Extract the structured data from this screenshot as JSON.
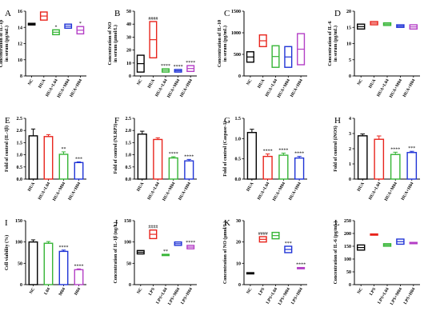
{
  "chart_data": [
    {
      "id": "A",
      "type": "box",
      "letter": "A",
      "ylabel": [
        "Concentration of IL-1β",
        "in serum (pg/mL)"
      ],
      "ylim": [
        8,
        16
      ],
      "yticks": [
        8,
        10,
        12,
        14,
        16
      ],
      "categories": [
        "NC",
        "HUA",
        "HUA+L04",
        "HUA+M04",
        "HUA+H04"
      ],
      "colors": [
        "#000000",
        "#e8241c",
        "#35b535",
        "#1f33d6",
        "#b43fc6"
      ],
      "values": [
        [
          14.3,
          14.5
        ],
        [
          14.9,
          15.9
        ],
        [
          13.1,
          13.7
        ],
        [
          13.9,
          14.4
        ],
        [
          13.2,
          14.1
        ]
      ],
      "sig": [
        "",
        "",
        "*",
        "",
        "*"
      ]
    },
    {
      "id": "B",
      "type": "box",
      "letter": "B",
      "ylabel": [
        "Concentration of NO",
        "in serum (μmol/L)"
      ],
      "ylim": [
        0,
        50
      ],
      "yticks": [
        0,
        10,
        20,
        30,
        40,
        50
      ],
      "categories": [
        "NC",
        "HUA",
        "HUA+L04",
        "HUA+M04",
        "HUA+H04"
      ],
      "colors": [
        "#000000",
        "#e8241c",
        "#35b535",
        "#1f33d6",
        "#b43fc6"
      ],
      "values": [
        [
          3,
          16
        ],
        [
          14,
          42
        ],
        [
          3,
          5.5
        ],
        [
          3,
          5
        ],
        [
          3.5,
          8
        ]
      ],
      "sig": [
        "",
        "####",
        "****",
        "****",
        "****"
      ]
    },
    {
      "id": "C",
      "type": "box",
      "letter": "C",
      "ylabel": [
        "Concentration of IL-10",
        "in serum (pg/mL)"
      ],
      "ylim": [
        0,
        1500
      ],
      "yticks": [
        0,
        500,
        1000,
        1500
      ],
      "categories": [
        "NC",
        "HUA",
        "HUA+L04",
        "HUA+M04",
        "HUA+H04"
      ],
      "colors": [
        "#000000",
        "#e8241c",
        "#35b535",
        "#1f33d6",
        "#b43fc6"
      ],
      "values": [
        [
          320,
          560
        ],
        [
          680,
          950
        ],
        [
          200,
          700
        ],
        [
          200,
          680
        ],
        [
          260,
          980
        ]
      ],
      "sig": [
        "",
        "",
        "",
        "",
        ""
      ]
    },
    {
      "id": "D",
      "type": "box",
      "letter": "D",
      "ylabel": [
        "Concentration of IL-6",
        "in serum (pg/mL)"
      ],
      "ylim": [
        0,
        20
      ],
      "yticks": [
        0,
        5,
        10,
        15,
        20
      ],
      "categories": [
        "NC",
        "HUA",
        "HUA+L04",
        "HUA+M04",
        "HUA+H04"
      ],
      "colors": [
        "#000000",
        "#e8241c",
        "#35b535",
        "#1f33d6",
        "#b43fc6"
      ],
      "values": [
        [
          14.5,
          16
        ],
        [
          15.8,
          16.8
        ],
        [
          15.6,
          16.4
        ],
        [
          15,
          15.8
        ],
        [
          14.5,
          15.8
        ]
      ],
      "sig": [
        "",
        "",
        "",
        "",
        ""
      ]
    },
    {
      "id": "E",
      "type": "bar",
      "letter": "E",
      "ylabel": [
        "Fold of control  (IL-1β)"
      ],
      "ylim": [
        0,
        2.5
      ],
      "yticks": [
        0.0,
        0.5,
        1.0,
        1.5,
        2.0,
        2.5
      ],
      "categories": [
        "HUA",
        "HUA+L04",
        "HUA+M04",
        "HUA+H04"
      ],
      "colors": [
        "#000000",
        "#e8241c",
        "#35b535",
        "#1f33d6"
      ],
      "values": [
        1.78,
        1.75,
        1.02,
        0.68
      ],
      "errors": [
        0.28,
        0.08,
        0.1,
        0.03
      ],
      "sig": [
        "",
        "",
        "**",
        "***"
      ]
    },
    {
      "id": "F",
      "type": "bar",
      "letter": "F",
      "ylabel": [
        "Fold of control  (NLRP3)"
      ],
      "ylim": [
        0,
        2.5
      ],
      "yticks": [
        0.0,
        0.5,
        1.0,
        1.5,
        2.0,
        2.5
      ],
      "categories": [
        "HUA",
        "HUA+L04",
        "HUA+M04",
        "HUA+H04"
      ],
      "colors": [
        "#000000",
        "#e8241c",
        "#35b535",
        "#1f33d6"
      ],
      "values": [
        1.85,
        1.63,
        0.87,
        0.75
      ],
      "errors": [
        0.12,
        0.07,
        0.05,
        0.06
      ],
      "sig": [
        "",
        "",
        "****",
        "****"
      ]
    },
    {
      "id": "G",
      "type": "bar",
      "letter": "G",
      "ylabel": [
        "Fold of control  (Caspase-1)"
      ],
      "ylim": [
        0,
        1.5
      ],
      "yticks": [
        0.0,
        0.5,
        1.0,
        1.5
      ],
      "categories": [
        "HUA",
        "HUA+L04",
        "HUA+M04",
        "HUA+H04"
      ],
      "colors": [
        "#000000",
        "#e8241c",
        "#35b535",
        "#1f33d6"
      ],
      "values": [
        1.15,
        0.56,
        0.59,
        0.52
      ],
      "errors": [
        0.08,
        0.06,
        0.05,
        0.04
      ],
      "sig": [
        "",
        "****",
        "****",
        "****"
      ]
    },
    {
      "id": "H",
      "type": "bar",
      "letter": "H",
      "ylabel": [
        "Fold of control  (iNOS)"
      ],
      "ylim": [
        0,
        4
      ],
      "yticks": [
        0,
        1,
        2,
        3,
        4
      ],
      "categories": [
        "HUA",
        "HUA+L04",
        "HUA+M04",
        "HUA+H04"
      ],
      "colors": [
        "#000000",
        "#e8241c",
        "#35b535",
        "#1f33d6"
      ],
      "values": [
        2.85,
        2.62,
        1.62,
        1.75
      ],
      "errors": [
        0.12,
        0.22,
        0.15,
        0.08
      ],
      "sig": [
        "",
        "",
        "****",
        "***"
      ]
    },
    {
      "id": "I",
      "type": "bar",
      "letter": "I",
      "ylabel": [
        "Cell viability (%)"
      ],
      "ylim": [
        0,
        150
      ],
      "yticks": [
        0,
        50,
        100,
        150
      ],
      "categories": [
        "NC",
        "L04",
        "M04",
        "H04"
      ],
      "colors": [
        "#000000",
        "#35b535",
        "#1f33d6",
        "#b43fc6"
      ],
      "values": [
        100,
        97,
        78,
        35
      ],
      "errors": [
        5,
        4,
        3,
        2
      ],
      "sig": [
        "",
        "",
        "****",
        "****"
      ]
    },
    {
      "id": "J",
      "type": "box",
      "letter": "J",
      "ylabel": [
        "Concentration of IL-1β (ng/L)"
      ],
      "ylim": [
        0,
        150
      ],
      "yticks": [
        0,
        50,
        100,
        150
      ],
      "categories": [
        "NC",
        "LPS",
        "LPS+L04",
        "LPS+M04",
        "LPS+H04"
      ],
      "colors": [
        "#000000",
        "#e8241c",
        "#35b535",
        "#1f33d6",
        "#b43fc6"
      ],
      "values": [
        [
          72,
          80
        ],
        [
          108,
          128
        ],
        [
          69,
          71
        ],
        [
          92,
          100
        ],
        [
          84,
          92
        ]
      ],
      "sig": [
        "",
        "####",
        "**",
        "",
        "****"
      ]
    },
    {
      "id": "K",
      "type": "box",
      "letter": "K",
      "ylabel": [
        "Concentration of NO (μmol/L)"
      ],
      "ylim": [
        0,
        30
      ],
      "yticks": [
        0,
        10,
        20,
        30
      ],
      "categories": [
        "NC",
        "LPS",
        "LPS+L04",
        "LPS+M04",
        "LPS+H04"
      ],
      "colors": [
        "#000000",
        "#e8241c",
        "#35b535",
        "#1f33d6",
        "#b43fc6"
      ],
      "values": [
        [
          5.2,
          5.6
        ],
        [
          20,
          22.5
        ],
        [
          21.5,
          24.5
        ],
        [
          15,
          18
        ],
        [
          7.6,
          8
        ]
      ],
      "sig": [
        "",
        "####",
        "",
        "***",
        "****"
      ]
    },
    {
      "id": "L",
      "type": "box",
      "letter": "L",
      "ylabel": [
        "Concentration of IL-6 (pg/mL)"
      ],
      "ylim": [
        0,
        250
      ],
      "yticks": [
        0,
        50,
        100,
        150,
        200,
        250
      ],
      "categories": [
        "NC",
        "LPS",
        "LPS+L04",
        "LPS+M04",
        "LPS+H04"
      ],
      "colors": [
        "#000000",
        "#e8241c",
        "#35b535",
        "#1f33d6",
        "#b43fc6"
      ],
      "values": [
        [
          135,
          155
        ],
        [
          194,
          198
        ],
        [
          150,
          160
        ],
        [
          158,
          178
        ],
        [
          160,
          165
        ]
      ],
      "sig": [
        "",
        "",
        "",
        "",
        ""
      ]
    }
  ]
}
